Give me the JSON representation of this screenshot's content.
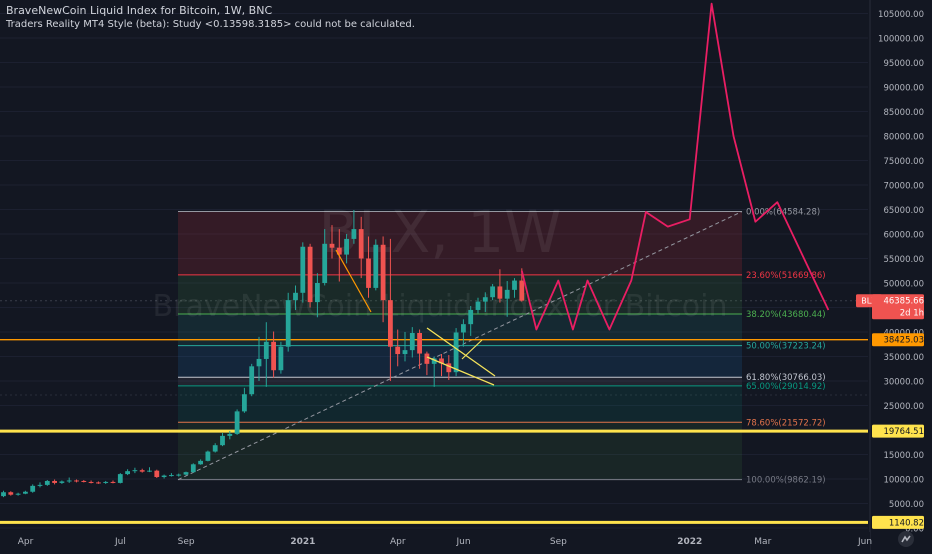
{
  "header": {
    "title": "BraveNewCoin Liquid Index for Bitcoin, 1W, BNC",
    "subtitle": "Traders Reality MT4 Style (beta): Study <0.13598.3185> could not be calculated."
  },
  "watermark": {
    "symbol": "BLX, 1W",
    "name": "BraveNewCoin Liquid Index for Bitcoin"
  },
  "colors": {
    "bg": "#131722",
    "up": "#26a69a",
    "down": "#ef5350",
    "projection": "#e91e63",
    "trend": "#f5e35a",
    "level": "#ffe34d",
    "support": "#ff9800"
  },
  "chart_data": {
    "type": "candlestick",
    "title": "BraveNewCoin Liquid Index for Bitcoin, 1W, BNC",
    "y_axis": {
      "min": 0,
      "max": 107000,
      "scale": "linear",
      "position": "right",
      "ticks": [
        "105000.00",
        "100000.00",
        "95000.00",
        "90000.00",
        "85000.00",
        "80000.00",
        "75000.00",
        "70000.00",
        "65000.00",
        "60000.00",
        "55000.00",
        "50000.00",
        "45000.00",
        "40000.00",
        "35000.00",
        "30000.00",
        "25000.00",
        "20000.00",
        "15000.00",
        "10000.00",
        "5000.00",
        "0.00"
      ],
      "tick_values": [
        105000,
        100000,
        95000,
        90000,
        85000,
        80000,
        75000,
        70000,
        65000,
        60000,
        55000,
        50000,
        45000,
        40000,
        35000,
        30000,
        25000,
        20000,
        15000,
        10000,
        5000,
        0
      ]
    },
    "x_axis": {
      "labels": [
        "Apr",
        "Jul",
        "Sep",
        "2021",
        "Apr",
        "Jun",
        "Sep",
        "2022",
        "Mar",
        "Jun"
      ],
      "label_week_index": [
        0,
        13,
        22,
        38,
        51,
        60,
        73,
        91,
        101,
        115
      ]
    },
    "series": [
      {
        "name": "BLX",
        "type": "candlestick",
        "ohlc": [
          [
            6500,
            7600,
            6300,
            7300
          ],
          [
            7300,
            7500,
            6600,
            6800
          ],
          [
            6800,
            7200,
            6600,
            7000
          ],
          [
            7000,
            7600,
            6900,
            7400
          ],
          [
            7400,
            8900,
            7200,
            8600
          ],
          [
            8600,
            9300,
            8300,
            8800
          ],
          [
            8800,
            9800,
            8600,
            9600
          ],
          [
            9600,
            9900,
            8900,
            9200
          ],
          [
            9200,
            9700,
            9000,
            9500
          ],
          [
            9500,
            10300,
            9200,
            9700
          ],
          [
            9700,
            9900,
            9300,
            9600
          ],
          [
            9600,
            9800,
            9300,
            9400
          ],
          [
            9400,
            9700,
            9100,
            9300
          ],
          [
            9300,
            9500,
            9000,
            9200
          ],
          [
            9200,
            9600,
            9000,
            9400
          ],
          [
            9400,
            9700,
            9100,
            9200
          ],
          [
            9200,
            11200,
            9100,
            11000
          ],
          [
            11000,
            12000,
            10800,
            11600
          ],
          [
            11600,
            12300,
            11200,
            11800
          ],
          [
            11800,
            12100,
            11300,
            11500
          ],
          [
            11500,
            12400,
            11400,
            11700
          ],
          [
            11700,
            11900,
            10200,
            10400
          ],
          [
            10400,
            10900,
            10100,
            10700
          ],
          [
            10700,
            11200,
            10500,
            10800
          ],
          [
            10800,
            11100,
            10500,
            10900
          ],
          [
            10900,
            11500,
            10800,
            11400
          ],
          [
            11400,
            13200,
            11300,
            13000
          ],
          [
            13000,
            14000,
            12900,
            13700
          ],
          [
            13700,
            15800,
            13600,
            15600
          ],
          [
            15600,
            17300,
            15400,
            16900
          ],
          [
            16900,
            19400,
            16700,
            18800
          ],
          [
            18800,
            19800,
            18100,
            19200
          ],
          [
            19200,
            24200,
            19000,
            23800
          ],
          [
            23800,
            28600,
            23500,
            27300
          ],
          [
            27300,
            33500,
            26900,
            33000
          ],
          [
            33000,
            39000,
            30000,
            34500
          ],
          [
            34500,
            42000,
            28800,
            38000
          ],
          [
            38000,
            40100,
            30700,
            32200
          ],
          [
            32200,
            38000,
            31500,
            37000
          ],
          [
            37000,
            48000,
            36000,
            46500
          ],
          [
            46500,
            49500,
            44500,
            48000
          ],
          [
            48000,
            58300,
            46000,
            57400
          ],
          [
            57400,
            58000,
            45000,
            46100
          ],
          [
            46100,
            52000,
            43000,
            50000
          ],
          [
            50000,
            61000,
            49500,
            58000
          ],
          [
            58000,
            61800,
            55000,
            57200
          ],
          [
            57200,
            61000,
            50300,
            55800
          ],
          [
            55800,
            60000,
            54000,
            59000
          ],
          [
            59000,
            64900,
            58000,
            61000
          ],
          [
            61000,
            63500,
            51000,
            55000
          ],
          [
            55000,
            59500,
            47000,
            49000
          ],
          [
            49000,
            58900,
            48500,
            57800
          ],
          [
            57800,
            59500,
            42000,
            46500
          ],
          [
            46500,
            59000,
            30000,
            37000
          ],
          [
            37000,
            40500,
            33000,
            35500
          ],
          [
            35500,
            40000,
            34000,
            36300
          ],
          [
            36300,
            41000,
            34800,
            39800
          ],
          [
            39800,
            40500,
            32500,
            35600
          ],
          [
            35600,
            36000,
            31200,
            33500
          ],
          [
            33500,
            35000,
            28800,
            34600
          ],
          [
            34600,
            35500,
            31000,
            33600
          ],
          [
            33600,
            35300,
            30200,
            31800
          ],
          [
            31800,
            40800,
            31000,
            39900
          ],
          [
            39900,
            42600,
            37000,
            41600
          ],
          [
            41600,
            45300,
            39200,
            44500
          ],
          [
            44500,
            47000,
            43800,
            46200
          ],
          [
            46200,
            48100,
            44100,
            47100
          ],
          [
            47100,
            49800,
            46500,
            49300
          ],
          [
            49300,
            52800,
            46000,
            46800
          ],
          [
            46800,
            50400,
            43100,
            48600
          ],
          [
            48600,
            51000,
            47000,
            50500
          ],
          [
            50500,
            53000,
            46200,
            46400
          ]
        ]
      },
      {
        "name": "projection",
        "type": "line",
        "points": [
          [
            71,
            52500
          ],
          [
            73,
            40500
          ],
          [
            76,
            50500
          ],
          [
            78,
            40500
          ],
          [
            80,
            50500
          ],
          [
            83,
            40500
          ],
          [
            86,
            50500
          ],
          [
            88,
            64500
          ],
          [
            91,
            61500
          ],
          [
            94,
            63000
          ],
          [
            97,
            107000
          ],
          [
            100,
            80000
          ],
          [
            103,
            62500
          ],
          [
            106,
            66500
          ],
          [
            113,
            44500
          ]
        ]
      }
    ],
    "fibonacci": [
      {
        "label": "0.00%(64584.28)",
        "value": 64584.28,
        "color": "#9598a1"
      },
      {
        "label": "23.60%(51669.86)",
        "value": 51669.86,
        "color": "#f23645"
      },
      {
        "label": "38.20%(43680.44)",
        "value": 43680.44,
        "color": "#4caf50"
      },
      {
        "label": "50.00%(37223.24)",
        "value": 37223.24,
        "color": "#26a69a"
      },
      {
        "label": "61.80%(30766.03)",
        "value": 30766.03,
        "color": "#c2c6d0"
      },
      {
        "label": "65.00%(29014.92)",
        "value": 29014.92,
        "color": "#089981"
      },
      {
        "label": "78.60%(21572.72)",
        "value": 21572.72,
        "color": "#e2734b"
      },
      {
        "label": "100.00%(9862.19)",
        "value": 9862.19,
        "color": "#787b86"
      }
    ],
    "horizontal_levels": [
      {
        "label": "38425.03",
        "value": 38425.03,
        "color": "#ff9800"
      },
      {
        "label": "19764.51",
        "value": 19764.51,
        "color": "#ffe34d"
      },
      {
        "label": "1140.82",
        "value": 1140.82,
        "color": "#ffe34d"
      }
    ],
    "price_tag": {
      "symbol": "BLX",
      "value_label": "46385.66",
      "countdown": "2d 1h",
      "value": 46385.66
    },
    "legend": "none"
  }
}
